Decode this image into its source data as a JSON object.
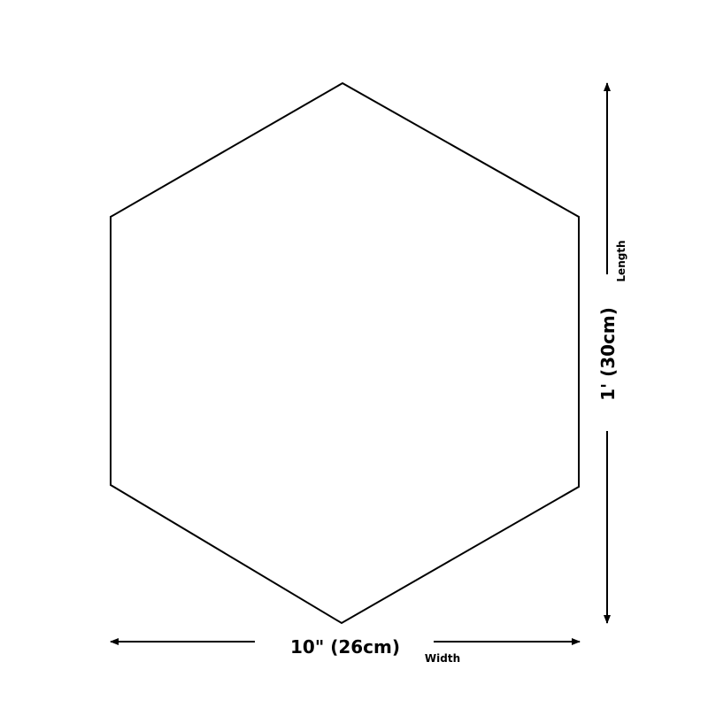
{
  "colors": {
    "stroke": "#000000",
    "background": "#ffffff"
  },
  "dimensions": {
    "height_value": "1' (30cm)",
    "height_label": "Length",
    "width_value": "10\" (26cm)",
    "width_label": "Width"
  }
}
